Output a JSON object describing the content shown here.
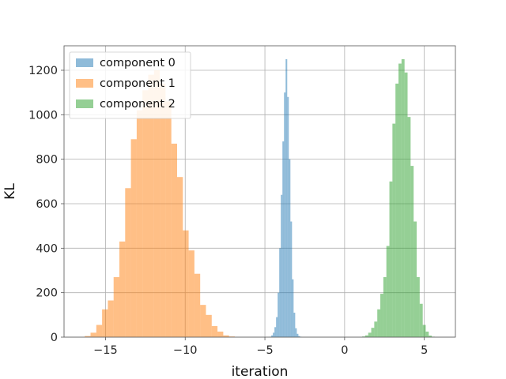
{
  "chart_data": {
    "type": "bar",
    "subtype": "histogram",
    "xlabel": "iteration",
    "ylabel": "KL",
    "xlim": [
      -17.6,
      6.95
    ],
    "ylim": [
      0,
      1310
    ],
    "xticks": [
      -15,
      -10,
      -5,
      0,
      5
    ],
    "xtick_labels": [
      "−15",
      "−10",
      "−5",
      "0",
      "5"
    ],
    "yticks": [
      0,
      200,
      400,
      600,
      800,
      1000,
      1200
    ],
    "grid": true,
    "legend_position": "top-left",
    "series": [
      {
        "name": "component 0",
        "color": "#1f77b4",
        "alpha": 0.5,
        "bin_start": -4.7,
        "bin_width": 0.1,
        "values": [
          2,
          8,
          20,
          45,
          90,
          200,
          400,
          640,
          880,
          1100,
          1250,
          1080,
          800,
          520,
          260,
          110,
          40,
          15,
          5,
          2
        ]
      },
      {
        "name": "component 1",
        "color": "#ff7f0e",
        "alpha": 0.5,
        "bin_start": -16.3,
        "bin_width": 0.362,
        "values": [
          5,
          20,
          55,
          125,
          165,
          270,
          430,
          670,
          890,
          1020,
          1110,
          1180,
          1200,
          1140,
          1060,
          870,
          720,
          480,
          390,
          285,
          145,
          100,
          50,
          25,
          8,
          3
        ]
      },
      {
        "name": "component 2",
        "color": "#2ca02c",
        "alpha": 0.5,
        "bin_start": 1.1,
        "bin_width": 0.19,
        "values": [
          3,
          8,
          20,
          42,
          70,
          125,
          195,
          270,
          410,
          700,
          960,
          1140,
          1230,
          1250,
          1190,
          990,
          770,
          520,
          270,
          150,
          55,
          25,
          7,
          2
        ]
      }
    ]
  }
}
